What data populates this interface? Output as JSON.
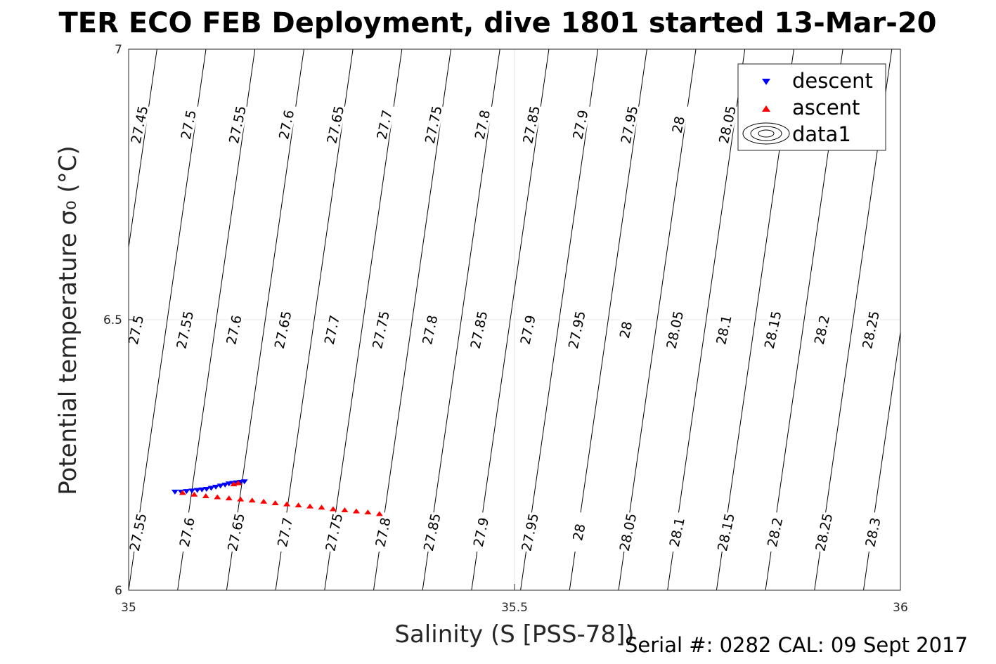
{
  "chart_data": {
    "type": "scatter",
    "title": "TER ECO FEB Deployment, dive 1801 started 13-Mar-20",
    "xlabel": "Salinity (S [PSS-78])",
    "ylabel": "Potential temperature σ₀ (°C)",
    "xlim": [
      35,
      36
    ],
    "ylim": [
      6,
      7
    ],
    "xticks": [
      "35",
      "35.5",
      "36"
    ],
    "yticks": [
      "6",
      "6.5",
      "7"
    ],
    "grid": true,
    "legend_position": "top-right",
    "contour_series_name": "data1",
    "contour_labels_top": [
      "27.45",
      "27.5",
      "27.55",
      "27.6",
      "27.65",
      "27.7",
      "27.75",
      "27.8",
      "27.85",
      "27.9",
      "27.95",
      "28",
      "28.05"
    ],
    "contour_labels_mid": [
      "27.5",
      "27.55",
      "27.6",
      "27.65",
      "27.7",
      "27.75",
      "27.8",
      "27.85",
      "27.9",
      "27.95",
      "28",
      "28.05",
      "28.1",
      "28.15",
      "28.2",
      "28.25"
    ],
    "contour_labels_bottom": [
      "27.55",
      "27.6",
      "27.65",
      "27.7",
      "27.75",
      "27.8",
      "27.85",
      "27.9",
      "27.95",
      "28",
      "28.05",
      "28.1",
      "28.15",
      "28.2",
      "28.25",
      "28.3"
    ],
    "series": [
      {
        "name": "descent",
        "color": "#0000ff",
        "marker": "triangle-down",
        "points": [
          [
            35.06,
            6.182
          ],
          [
            35.068,
            6.182
          ],
          [
            35.075,
            6.183
          ],
          [
            35.082,
            6.184
          ],
          [
            35.089,
            6.185
          ],
          [
            35.095,
            6.186
          ],
          [
            35.101,
            6.187
          ],
          [
            35.107,
            6.189
          ],
          [
            35.113,
            6.191
          ],
          [
            35.119,
            6.193
          ],
          [
            35.125,
            6.195
          ],
          [
            35.13,
            6.197
          ],
          [
            35.135,
            6.198
          ],
          [
            35.14,
            6.199
          ],
          [
            35.145,
            6.2
          ],
          [
            35.15,
            6.201
          ]
        ]
      },
      {
        "name": "ascent",
        "color": "#ff0000",
        "marker": "triangle-up",
        "points": [
          [
            35.142,
            6.198
          ],
          [
            35.136,
            6.196
          ],
          [
            35.07,
            6.18
          ],
          [
            35.085,
            6.177
          ],
          [
            35.1,
            6.174
          ],
          [
            35.115,
            6.172
          ],
          [
            35.13,
            6.17
          ],
          [
            35.145,
            6.168
          ],
          [
            35.16,
            6.166
          ],
          [
            35.175,
            6.164
          ],
          [
            35.19,
            6.161
          ],
          [
            35.205,
            6.159
          ],
          [
            35.22,
            6.157
          ],
          [
            35.235,
            6.155
          ],
          [
            35.25,
            6.153
          ],
          [
            35.265,
            6.15
          ],
          [
            35.28,
            6.148
          ],
          [
            35.295,
            6.146
          ],
          [
            35.31,
            6.144
          ],
          [
            35.325,
            6.141
          ]
        ]
      }
    ]
  },
  "footer": {
    "serial_text": "Serial #: 0282  CAL: 09 Sept 2017"
  }
}
